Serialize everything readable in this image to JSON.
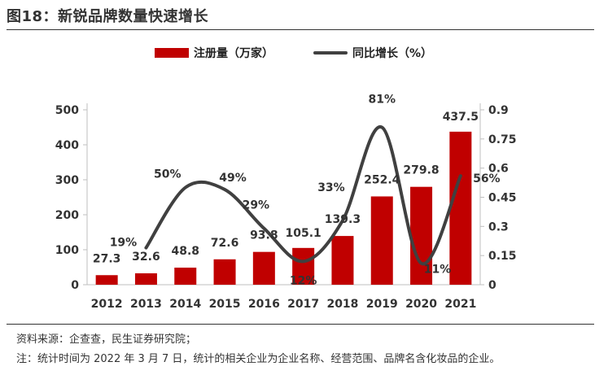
{
  "title": "图18：新锐品牌数量快速增长",
  "legend": {
    "bar_label": "注册量（万家）",
    "line_label": "同比增长（%）"
  },
  "colors": {
    "bar": "#c00000",
    "line": "#404040",
    "axis": "#bfbfbf"
  },
  "chart_data": {
    "type": "bar",
    "title": "新锐品牌数量快速增长",
    "categories": [
      "2012",
      "2013",
      "2014",
      "2015",
      "2016",
      "2017",
      "2018",
      "2019",
      "2020",
      "2021"
    ],
    "series": [
      {
        "name": "注册量（万家）",
        "type": "bar",
        "axis": "left",
        "values": [
          27.3,
          32.6,
          48.8,
          72.6,
          93.8,
          105.1,
          139.3,
          252.4,
          279.8,
          437.5
        ],
        "labels": [
          "27.3",
          "32.6",
          "48.8",
          "72.6",
          "93.8",
          "105.1",
          "139.3",
          "252.4",
          "279.8",
          "437.5"
        ]
      },
      {
        "name": "同比增长（%）",
        "type": "line",
        "axis": "right",
        "x": [
          "2013",
          "2014",
          "2015",
          "2016",
          "2017",
          "2018",
          "2019",
          "2020",
          "2021"
        ],
        "values": [
          0.19,
          0.5,
          0.49,
          0.29,
          0.12,
          0.33,
          0.81,
          0.11,
          0.56
        ],
        "labels": [
          "19%",
          "50%",
          "49%",
          "29%",
          "12%",
          "33%",
          "81%",
          "11%",
          "56%"
        ]
      }
    ],
    "left_axis": {
      "ylim": [
        0,
        500
      ],
      "ticks": [
        "0",
        "100",
        "200",
        "300",
        "400",
        "500"
      ]
    },
    "right_axis": {
      "ylim": [
        0,
        0.9
      ],
      "ticks": [
        "0",
        "0.15",
        "0.3",
        "0.45",
        "0.6",
        "0.75",
        "0.9"
      ]
    },
    "legend_position": "top"
  },
  "footnotes": {
    "source": "资料来源：企查查，民生证券研究院；",
    "note": "注：统计时间为 2022 年 3 月 7 日，统计的相关企业为企业名称、经营范围、品牌名含化妆品的企业。"
  }
}
